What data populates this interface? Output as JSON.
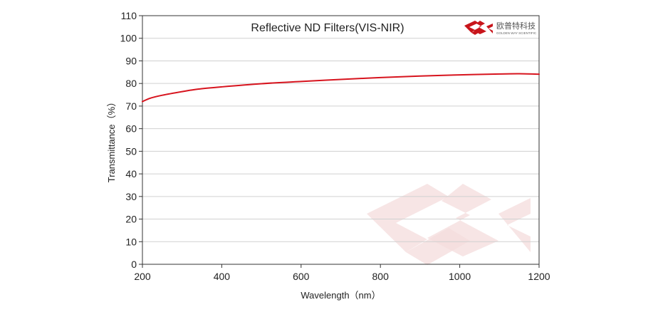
{
  "chart_data": {
    "type": "line",
    "title": "Reflective ND Filters(VIS-NIR)",
    "xlabel": "Wavelength（nm）",
    "ylabel": "Transmittance（%）",
    "xlim": [
      200,
      1200
    ],
    "ylim": [
      0,
      110
    ],
    "xticks": [
      200,
      400,
      600,
      800,
      1000,
      1200
    ],
    "yticks": [
      0,
      10,
      20,
      30,
      40,
      50,
      60,
      70,
      80,
      90,
      100,
      110
    ],
    "grid": "horizontal",
    "series": [
      {
        "color": "#d7141e",
        "x": [
          200,
          220,
          250,
          300,
          340,
          400,
          500,
          600,
          700,
          800,
          900,
          1000,
          1100,
          1150,
          1200
        ],
        "y": [
          72,
          73.5,
          74.8,
          76.4,
          77.5,
          78.5,
          79.9,
          80.9,
          81.8,
          82.6,
          83.3,
          83.8,
          84.2,
          84.3,
          84.1
        ]
      }
    ]
  },
  "logo": {
    "name": "golden-way-logo",
    "text_cn": "欧普特科技",
    "text_en": "GOLDEN WAY SCIENTIFIC",
    "color": "#c8151b"
  },
  "watermark": {
    "color": "#f4dcdc"
  }
}
